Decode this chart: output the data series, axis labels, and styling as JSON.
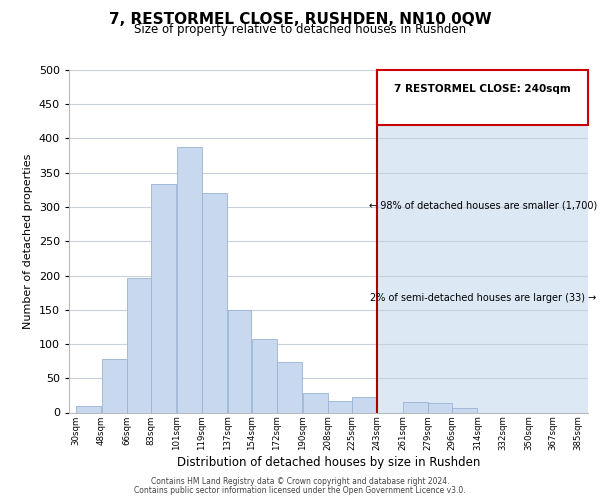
{
  "title": "7, RESTORMEL CLOSE, RUSHDEN, NN10 0QW",
  "subtitle": "Size of property relative to detached houses in Rushden",
  "xlabel": "Distribution of detached houses by size in Rushden",
  "ylabel": "Number of detached properties",
  "bar_left_edges": [
    30,
    48,
    66,
    83,
    101,
    119,
    137,
    154,
    172,
    190,
    208,
    225,
    243,
    261,
    279,
    296,
    314,
    332,
    350,
    367
  ],
  "bar_heights": [
    10,
    78,
    197,
    333,
    388,
    321,
    150,
    108,
    73,
    29,
    17,
    22,
    0,
    15,
    14,
    6,
    0,
    0,
    0,
    0
  ],
  "bar_widths": [
    18,
    18,
    17,
    18,
    18,
    18,
    17,
    18,
    18,
    18,
    17,
    18,
    18,
    18,
    17,
    18,
    18,
    18,
    17,
    18
  ],
  "tick_labels": [
    "30sqm",
    "48sqm",
    "66sqm",
    "83sqm",
    "101sqm",
    "119sqm",
    "137sqm",
    "154sqm",
    "172sqm",
    "190sqm",
    "208sqm",
    "225sqm",
    "243sqm",
    "261sqm",
    "279sqm",
    "296sqm",
    "314sqm",
    "332sqm",
    "350sqm",
    "367sqm",
    "385sqm"
  ],
  "tick_positions": [
    30,
    48,
    66,
    83,
    101,
    119,
    137,
    154,
    172,
    190,
    208,
    225,
    243,
    261,
    279,
    296,
    314,
    332,
    350,
    367,
    385
  ],
  "bar_color": "#c8d8ee",
  "bar_edge_color": "#9ab4d4",
  "vline_x": 243,
  "vline_color": "#aa0000",
  "ylim": [
    0,
    500
  ],
  "xlim": [
    25,
    392
  ],
  "annotation_title": "7 RESTORMEL CLOSE: 240sqm",
  "annotation_line1": "← 98% of detached houses are smaller (1,700)",
  "annotation_line2": "2% of semi-detached houses are larger (33) →",
  "footer1": "Contains HM Land Registry data © Crown copyright and database right 2024.",
  "footer2": "Contains public sector information licensed under the Open Government Licence v3.0.",
  "bg_color": "#ffffff",
  "plot_bg_color": "#ffffff",
  "right_bg_color": "#dde8f5",
  "grid_color": "#c8d0de"
}
